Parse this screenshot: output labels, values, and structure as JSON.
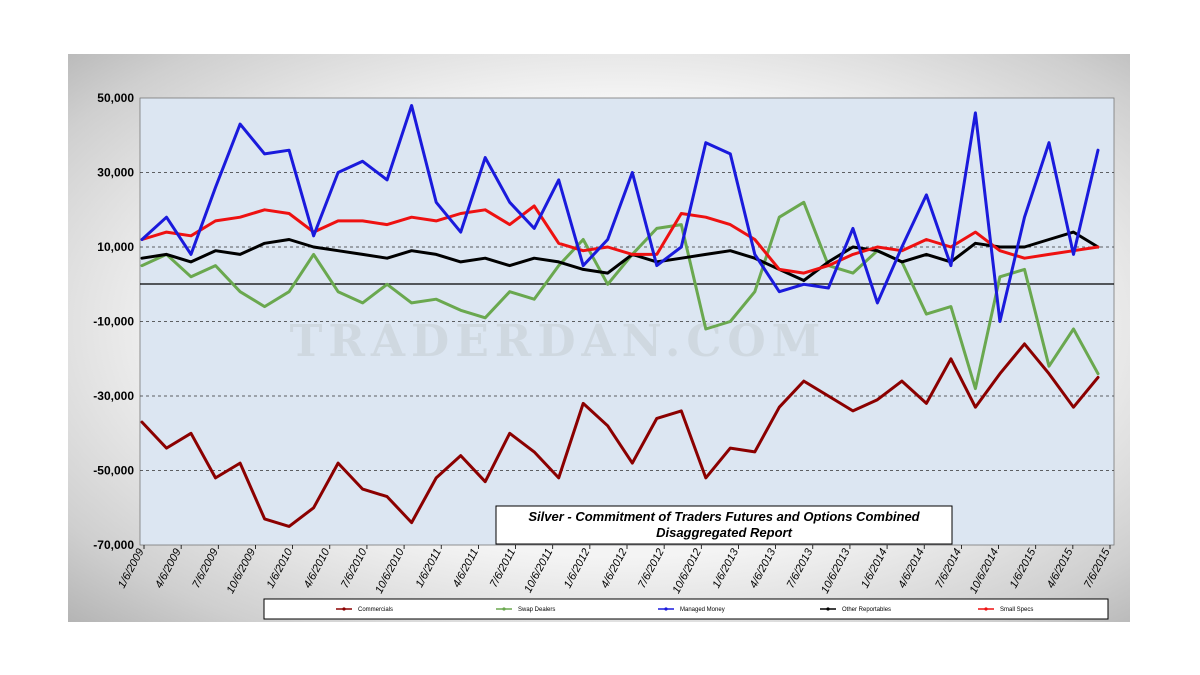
{
  "watermark": "TRADERDAN.COM",
  "colors": {
    "plot_background": "#dce6f2",
    "commercials": "#8b0000",
    "swap_dealers": "#6aa84f",
    "managed_money": "#1a1adc",
    "other_reportables": "#000000",
    "small_specs": "#ee1111"
  },
  "chart_data": {
    "type": "line",
    "title": "Silver - Commitment of Traders Futures and Options Combined",
    "subtitle": "Disaggregated  Report",
    "xlabel": "",
    "ylabel": "",
    "ylim": [
      -70000,
      50000
    ],
    "yticks": [
      50000,
      30000,
      10000,
      -10000,
      -30000,
      -50000,
      -70000
    ],
    "ytick_labels": [
      "50,000",
      "30,000",
      "10,000",
      "-10,000",
      "-30,000",
      "-50,000",
      "-70,000"
    ],
    "xtick_labels": [
      "1/6/2009",
      "4/6/2009",
      "7/6/2009",
      "10/6/2009",
      "1/6/2010",
      "4/6/2010",
      "7/6/2010",
      "10/6/2010",
      "1/6/2011",
      "4/6/2011",
      "7/6/2011",
      "10/6/2011",
      "1/6/2012",
      "4/6/2012",
      "7/6/2012",
      "10/6/2012",
      "1/6/2013",
      "4/6/2013",
      "7/6/2013",
      "10/6/2013",
      "1/6/2014",
      "4/6/2014",
      "7/6/2014",
      "10/6/2014",
      "1/6/2015",
      "4/6/2015",
      "7/6/2015"
    ],
    "grid": "horizontal dashed",
    "legend_position": "bottom",
    "x": [
      "2009-01",
      "2009-03",
      "2009-05",
      "2009-07",
      "2009-09",
      "2009-11",
      "2010-01",
      "2010-03",
      "2010-05",
      "2010-07",
      "2010-09",
      "2010-11",
      "2011-01",
      "2011-03",
      "2011-05",
      "2011-07",
      "2011-09",
      "2011-11",
      "2012-01",
      "2012-03",
      "2012-05",
      "2012-07",
      "2012-09",
      "2012-11",
      "2013-01",
      "2013-03",
      "2013-05",
      "2013-07",
      "2013-09",
      "2013-11",
      "2014-01",
      "2014-03",
      "2014-05",
      "2014-07",
      "2014-09",
      "2014-11",
      "2015-01",
      "2015-03",
      "2015-05",
      "2015-07"
    ],
    "series": [
      {
        "name": "Commercials",
        "values": [
          -37000,
          -44000,
          -40000,
          -52000,
          -48000,
          -63000,
          -65000,
          -60000,
          -48000,
          -55000,
          -57000,
          -64000,
          -52000,
          -46000,
          -53000,
          -40000,
          -45000,
          -52000,
          -32000,
          -38000,
          -48000,
          -36000,
          -34000,
          -52000,
          -44000,
          -45000,
          -33000,
          -26000,
          -30000,
          -34000,
          -31000,
          -26000,
          -32000,
          -20000,
          -33000,
          -24000,
          -16000,
          -24000,
          -33000,
          -25000
        ]
      },
      {
        "name": "Swap Dealers",
        "values": [
          5000,
          8000,
          2000,
          5000,
          -2000,
          -6000,
          -2000,
          8000,
          -2000,
          -5000,
          0,
          -5000,
          -4000,
          -7000,
          -9000,
          -2000,
          -4000,
          5000,
          12000,
          0,
          8000,
          15000,
          16000,
          -12000,
          -10000,
          -2000,
          18000,
          22000,
          5000,
          3000,
          9000,
          6000,
          -8000,
          -6000,
          -28000,
          2000,
          4000,
          -22000,
          -12000,
          -24000
        ]
      },
      {
        "name": "Managed Money",
        "values": [
          12000,
          18000,
          8000,
          26000,
          43000,
          35000,
          36000,
          13000,
          30000,
          33000,
          28000,
          48000,
          22000,
          14000,
          34000,
          22000,
          15000,
          28000,
          5000,
          12000,
          30000,
          5000,
          10000,
          38000,
          35000,
          8000,
          -2000,
          0,
          -1000,
          15000,
          -5000,
          10000,
          24000,
          5000,
          46000,
          -10000,
          18000,
          38000,
          8000,
          36000
        ]
      },
      {
        "name": "Other Reportables",
        "values": [
          7000,
          8000,
          6000,
          9000,
          8000,
          11000,
          12000,
          10000,
          9000,
          8000,
          7000,
          9000,
          8000,
          6000,
          7000,
          5000,
          7000,
          6000,
          4000,
          3000,
          8000,
          6000,
          7000,
          8000,
          9000,
          7000,
          4000,
          1000,
          6000,
          10000,
          9000,
          6000,
          8000,
          6000,
          11000,
          10000,
          10000,
          12000,
          14000,
          10000
        ]
      },
      {
        "name": "Small Specs",
        "values": [
          12000,
          14000,
          13000,
          17000,
          18000,
          20000,
          19000,
          14000,
          17000,
          17000,
          16000,
          18000,
          17000,
          19000,
          20000,
          16000,
          21000,
          11000,
          9000,
          10000,
          8000,
          8000,
          19000,
          18000,
          16000,
          12000,
          4000,
          3000,
          5000,
          8000,
          10000,
          9000,
          12000,
          10000,
          14000,
          9000,
          7000,
          8000,
          9000,
          10000
        ]
      }
    ]
  }
}
